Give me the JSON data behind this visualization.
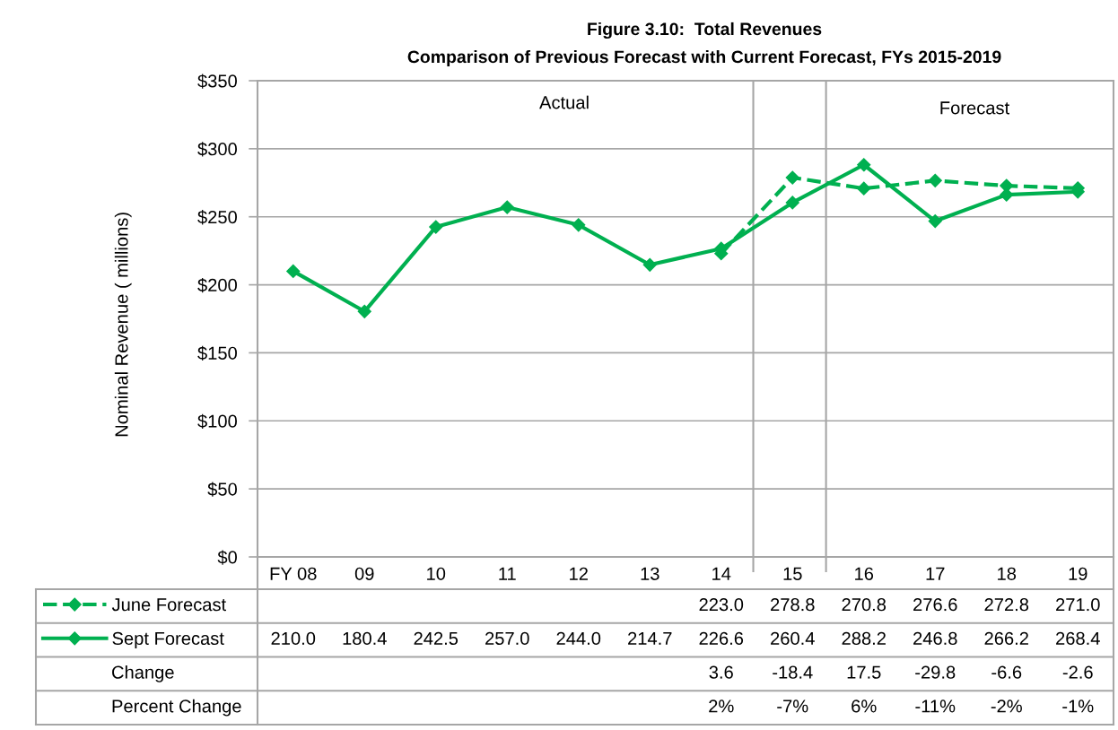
{
  "chart_data": {
    "type": "line",
    "title": "Figure 3.10:  Total Revenues",
    "subtitle": "Comparison of Previous Forecast with Current Forecast, FYs 2015-2019",
    "ylabel": "Nominal Revenue ( millions)",
    "x": [
      2008,
      2009,
      2010,
      2011,
      2012,
      2013,
      2014,
      2015,
      2016,
      2017,
      2018,
      2019
    ],
    "xlim": [
      2007.5,
      2019.5
    ],
    "xticks": [
      {
        "value": 2008,
        "label": "FY 08"
      },
      {
        "value": 2009,
        "label": "09"
      },
      {
        "value": 2010,
        "label": "10"
      },
      {
        "value": 2011,
        "label": "11"
      },
      {
        "value": 2012,
        "label": "12"
      },
      {
        "value": 2013,
        "label": "13"
      },
      {
        "value": 2014,
        "label": "14"
      },
      {
        "value": 2015,
        "label": "15"
      },
      {
        "value": 2016,
        "label": "16"
      },
      {
        "value": 2017,
        "label": "17"
      },
      {
        "value": 2018,
        "label": "18"
      },
      {
        "value": 2019,
        "label": "19"
      }
    ],
    "ylim": [
      0,
      350
    ],
    "yticks": [
      {
        "value": 0,
        "label": "$0"
      },
      {
        "value": 50,
        "label": "$50"
      },
      {
        "value": 100,
        "label": "$100"
      },
      {
        "value": 150,
        "label": "$150"
      },
      {
        "value": 200,
        "label": "$200"
      },
      {
        "value": 250,
        "label": "$250"
      },
      {
        "value": 300,
        "label": "$300"
      },
      {
        "value": 350,
        "label": "$350"
      }
    ],
    "grid": "y",
    "legend": "bottom left",
    "marker": "diamond",
    "series": [
      {
        "name": "June Forecast",
        "color": "#00b050",
        "line_style": "dashed",
        "values": [
          null,
          null,
          null,
          null,
          null,
          null,
          223.0,
          278.8,
          270.8,
          276.6,
          272.8,
          271.0
        ]
      },
      {
        "name": "Sept Forecast",
        "color": "#00b050",
        "line_style": "solid",
        "values": [
          210.0,
          180.4,
          242.5,
          257.0,
          244.0,
          214.7,
          226.6,
          260.4,
          288.2,
          246.8,
          266.2,
          268.4
        ]
      }
    ],
    "ref_lines": [
      {
        "axis": "x",
        "value": 2014.45,
        "color": "#a6a6a6"
      },
      {
        "axis": "x",
        "value": 2015.47,
        "color": "#a6a6a6"
      }
    ],
    "annotations": [
      "Actual",
      "Forecast",
      "223.0",
      "278.8",
      "270.8",
      "276.6",
      "272.8",
      "271.0",
      "210.0",
      "180.4",
      "242.5",
      "257.0",
      "244.0",
      "214.7",
      "226.6",
      "260.4",
      "288.2",
      "246.8",
      "266.2",
      "268.4",
      "Change",
      "3.6",
      "-18.4",
      "17.5",
      "-29.8",
      "-6.6",
      "-2.6",
      "Percent Change",
      "2%",
      "-7%",
      "6%",
      "-11%",
      "-2%",
      "-1%"
    ]
  }
}
